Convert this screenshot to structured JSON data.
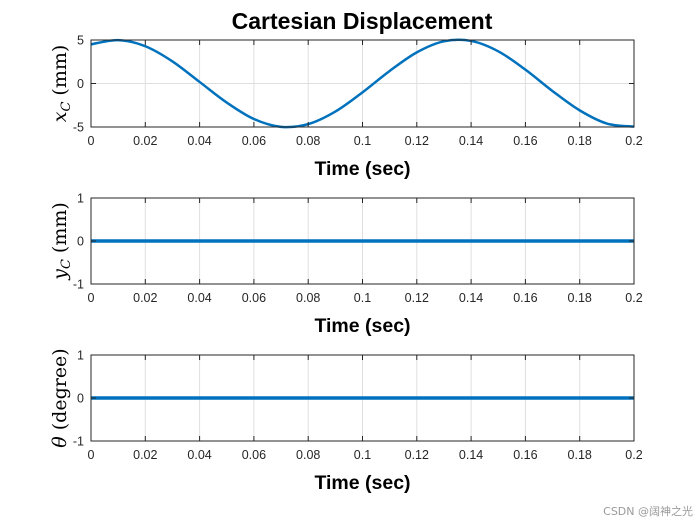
{
  "figure": {
    "title": "Cartesian Displacement",
    "watermark": "CSDN @阔神之光"
  },
  "colors": {
    "line": "#0072bd",
    "grid": "#dfdfdf",
    "axis": "#262626"
  },
  "chart_data": [
    {
      "type": "line",
      "xlabel": "Time (sec)",
      "ylabel": {
        "symbol": "x",
        "subscript": "C",
        "unit": "(mm)"
      },
      "xlim": [
        0,
        0.2
      ],
      "ylim": [
        -5,
        5
      ],
      "xticks": [
        0,
        0.02,
        0.04,
        0.06,
        0.08,
        0.1,
        0.12,
        0.14,
        0.16,
        0.18,
        0.2
      ],
      "xtick_labels": [
        "0",
        "0.02",
        "0.04",
        "0.06",
        "0.08",
        "0.1",
        "0.12",
        "0.14",
        "0.16",
        "0.18",
        "0.2"
      ],
      "yticks": [
        -5,
        0,
        5
      ],
      "ytick_labels": [
        "-5",
        "0",
        "5"
      ],
      "grid": true,
      "series": [
        {
          "name": "x_C",
          "x": [
            0,
            0.01,
            0.02,
            0.03,
            0.04,
            0.05,
            0.06,
            0.07,
            0.08,
            0.09,
            0.1,
            0.11,
            0.12,
            0.13,
            0.14,
            0.15,
            0.16,
            0.17,
            0.18,
            0.19,
            0.2
          ],
          "y": [
            4.5,
            4.99,
            4.28,
            2.54,
            0.18,
            -2.19,
            -4.08,
            -4.98,
            -4.67,
            -3.23,
            -1.02,
            1.44,
            3.58,
            4.85,
            4.89,
            3.7,
            1.59,
            -0.87,
            -3.09,
            -4.6,
            -4.96
          ]
        }
      ]
    },
    {
      "type": "line",
      "xlabel": "Time (sec)",
      "ylabel": {
        "symbol": "y",
        "subscript": "C",
        "unit": "(mm)"
      },
      "xlim": [
        0,
        0.2
      ],
      "ylim": [
        -1,
        1
      ],
      "xticks": [
        0,
        0.02,
        0.04,
        0.06,
        0.08,
        0.1,
        0.12,
        0.14,
        0.16,
        0.18,
        0.2
      ],
      "xtick_labels": [
        "0",
        "0.02",
        "0.04",
        "0.06",
        "0.08",
        "0.1",
        "0.12",
        "0.14",
        "0.16",
        "0.18",
        "0.2"
      ],
      "yticks": [
        -1,
        0,
        1
      ],
      "ytick_labels": [
        "-1",
        "0",
        "1"
      ],
      "grid": true,
      "series": [
        {
          "name": "y_C",
          "x": [
            0,
            0.2
          ],
          "y": [
            0,
            0
          ]
        }
      ]
    },
    {
      "type": "line",
      "xlabel": "Time (sec)",
      "ylabel": {
        "symbol": "θ",
        "subscript": "",
        "unit": "(degree)"
      },
      "xlim": [
        0,
        0.2
      ],
      "ylim": [
        -1,
        1
      ],
      "xticks": [
        0,
        0.02,
        0.04,
        0.06,
        0.08,
        0.1,
        0.12,
        0.14,
        0.16,
        0.18,
        0.2
      ],
      "xtick_labels": [
        "0",
        "0.02",
        "0.04",
        "0.06",
        "0.08",
        "0.1",
        "0.12",
        "0.14",
        "0.16",
        "0.18",
        "0.2"
      ],
      "yticks": [
        -1,
        0,
        1
      ],
      "ytick_labels": [
        "-1",
        "0",
        "1"
      ],
      "grid": true,
      "series": [
        {
          "name": "theta",
          "x": [
            0,
            0.2
          ],
          "y": [
            0,
            0
          ]
        }
      ]
    }
  ]
}
